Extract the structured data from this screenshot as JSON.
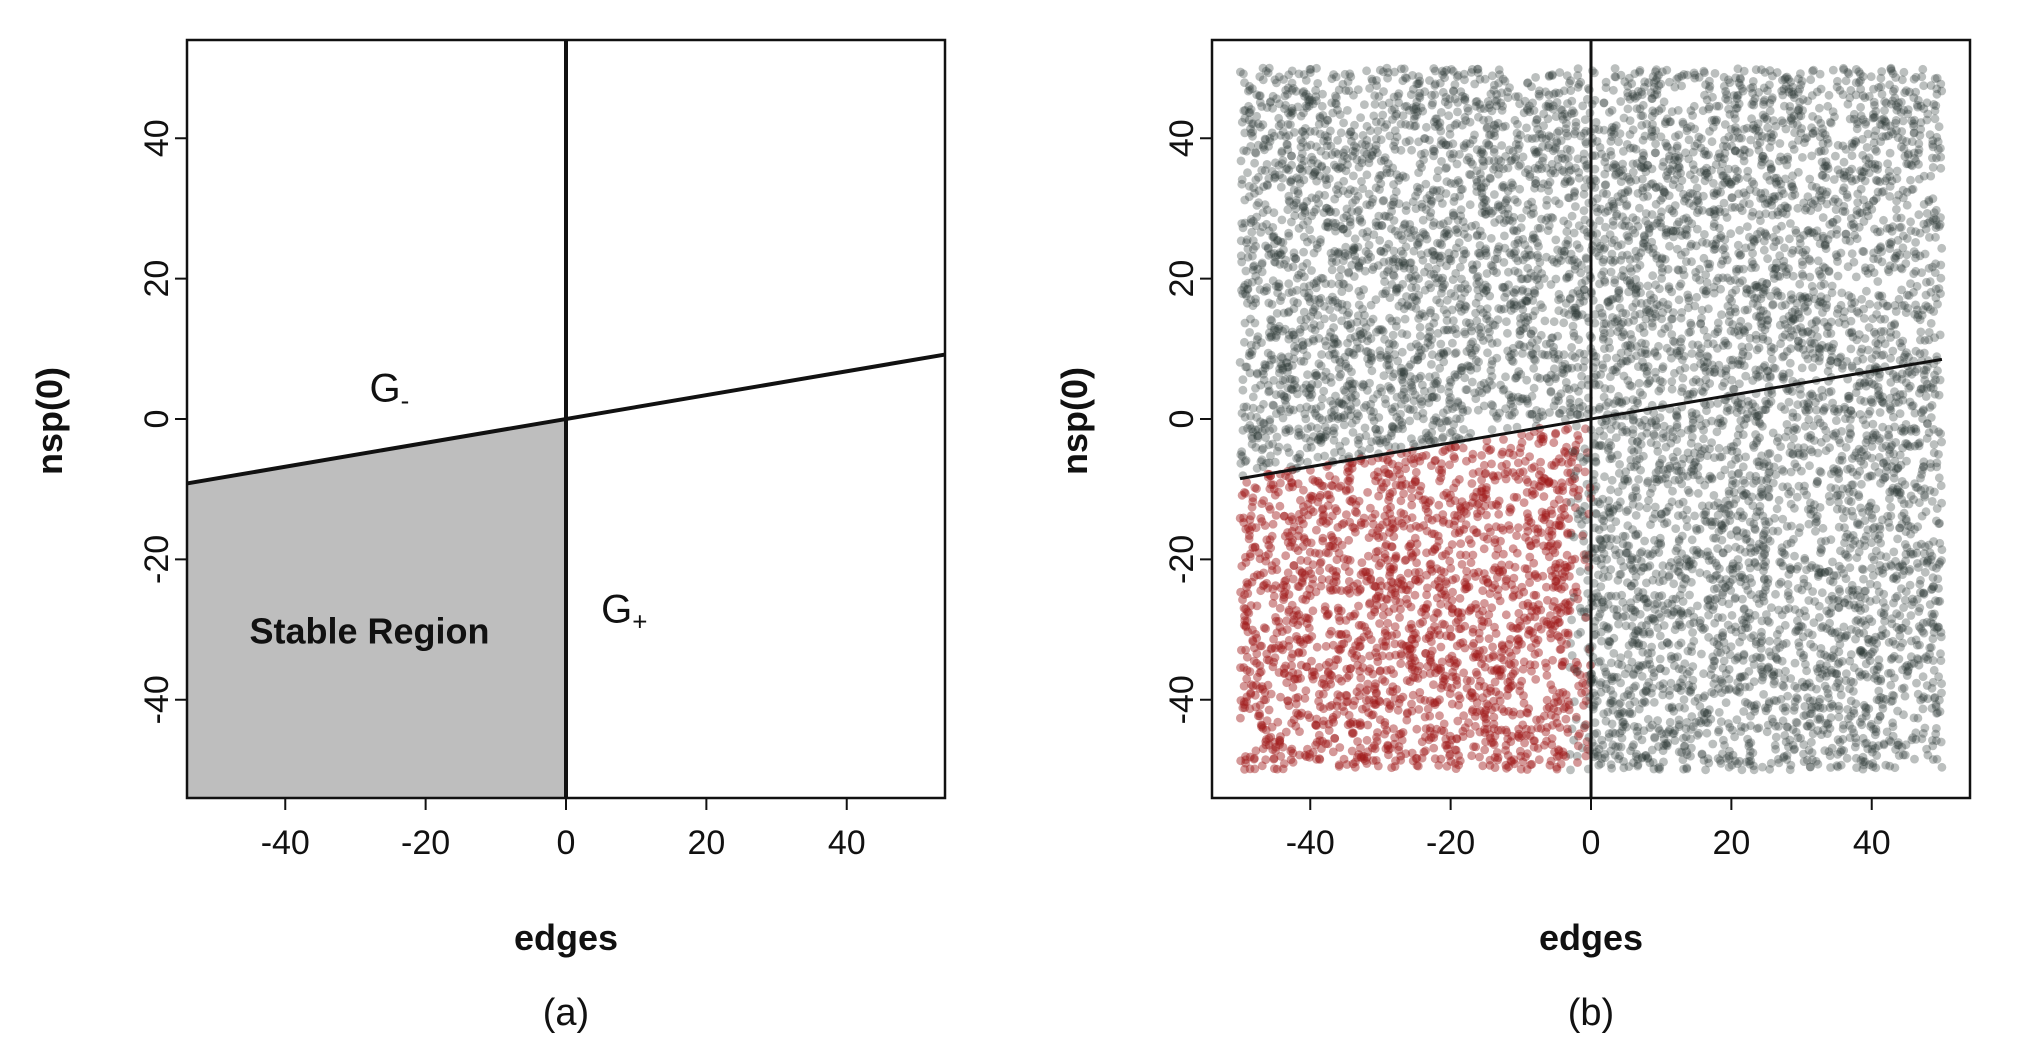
{
  "chart_data": [
    {
      "type": "area",
      "panel_label": "(a)",
      "xlabel": "edges",
      "ylabel": "nsp(0)",
      "xlim": [
        -54,
        54
      ],
      "ylim": [
        -54,
        54
      ],
      "xticks": [
        -40,
        -20,
        0,
        20,
        40
      ],
      "yticks": [
        -40,
        -20,
        0,
        20,
        40
      ],
      "boundary_line": {
        "slope": 0.17,
        "intercept": 0
      },
      "vertical_line_x": 0,
      "shaded_region": {
        "label": "Stable Region",
        "color": "#bebebe",
        "x_range": [
          -54,
          0
        ],
        "below_line": true
      },
      "annotations": [
        {
          "base": "G",
          "sub": "-",
          "x": -28,
          "y": 2.5
        },
        {
          "base": "G",
          "sub": "+",
          "x": 5,
          "y": -29
        }
      ],
      "grid": false
    },
    {
      "type": "scatter",
      "panel_label": "(b)",
      "xlabel": "edges",
      "ylabel": "nsp(0)",
      "xlim": [
        -54,
        54
      ],
      "ylim": [
        -54,
        54
      ],
      "xticks": [
        -40,
        -20,
        0,
        20,
        40
      ],
      "yticks": [
        -40,
        -20,
        0,
        20,
        40
      ],
      "boundary_line": {
        "slope": 0.17,
        "intercept": 0,
        "x_range": [
          -50,
          50
        ]
      },
      "vertical_line_x": 0,
      "point_cloud": {
        "x_range": [
          -50,
          50
        ],
        "y_range": [
          -50,
          50
        ],
        "uniform": true
      },
      "colors": {
        "stable": "#a01a1a",
        "other": "#2c3836"
      },
      "grid": false
    }
  ]
}
